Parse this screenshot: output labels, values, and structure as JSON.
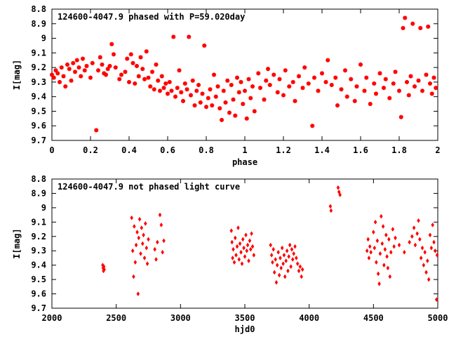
{
  "chart_data": [
    {
      "type": "scatter",
      "title": "124600-4047.9 phased with P=59.020day",
      "xlabel": "phase",
      "ylabel": "I[mag]",
      "xlim": [
        0,
        2
      ],
      "ylim": [
        8.8,
        9.7
      ],
      "y_inverted": true,
      "grid": false,
      "marker_color": "#ff0000",
      "marker": "asterisk",
      "xticks": [
        "0",
        "0.2",
        "0.4",
        "0.6",
        "0.8",
        "1",
        "1.2",
        "1.4",
        "1.6",
        "1.8",
        "2"
      ],
      "xtick_values": [
        0,
        0.2,
        0.4,
        0.6,
        0.8,
        1.0,
        1.2,
        1.4,
        1.6,
        1.8,
        2.0
      ],
      "yticks": [
        "8.8",
        "8.9",
        "9",
        "9.1",
        "9.2",
        "9.3",
        "9.4",
        "9.5",
        "9.6",
        "9.7"
      ],
      "ytick_values": [
        8.8,
        8.9,
        9.0,
        9.1,
        9.2,
        9.3,
        9.4,
        9.5,
        9.6,
        9.7
      ],
      "points": [
        [
          0.0,
          9.25
        ],
        [
          0.01,
          9.27
        ],
        [
          0.02,
          9.22
        ],
        [
          0.03,
          9.24
        ],
        [
          0.04,
          9.3
        ],
        [
          0.05,
          9.2
        ],
        [
          0.06,
          9.26
        ],
        [
          0.07,
          9.33
        ],
        [
          0.08,
          9.18
        ],
        [
          0.09,
          9.21
        ],
        [
          0.1,
          9.29
        ],
        [
          0.11,
          9.17
        ],
        [
          0.12,
          9.23
        ],
        [
          0.13,
          9.15
        ],
        [
          0.14,
          9.2
        ],
        [
          0.15,
          9.26
        ],
        [
          0.16,
          9.14
        ],
        [
          0.17,
          9.22
        ],
        [
          0.18,
          9.19
        ],
        [
          0.2,
          9.27
        ],
        [
          0.21,
          9.17
        ],
        [
          0.23,
          9.63
        ],
        [
          0.24,
          9.22
        ],
        [
          0.25,
          9.13
        ],
        [
          0.26,
          9.18
        ],
        [
          0.27,
          9.24
        ],
        [
          0.28,
          9.25
        ],
        [
          0.29,
          9.21
        ],
        [
          0.3,
          9.19
        ],
        [
          0.31,
          9.04
        ],
        [
          0.32,
          9.11
        ],
        [
          0.33,
          9.2
        ],
        [
          0.35,
          9.28
        ],
        [
          0.36,
          9.25
        ],
        [
          0.38,
          9.23
        ],
        [
          0.39,
          9.14
        ],
        [
          0.4,
          9.3
        ],
        [
          0.41,
          9.11
        ],
        [
          0.42,
          9.17
        ],
        [
          0.43,
          9.31
        ],
        [
          0.44,
          9.19
        ],
        [
          0.45,
          9.26
        ],
        [
          0.46,
          9.13
        ],
        [
          0.47,
          9.21
        ],
        [
          0.48,
          9.28
        ],
        [
          0.49,
          9.09
        ],
        [
          0.5,
          9.27
        ],
        [
          0.51,
          9.33
        ],
        [
          0.52,
          9.23
        ],
        [
          0.53,
          9.35
        ],
        [
          0.54,
          9.18
        ],
        [
          0.55,
          9.29
        ],
        [
          0.56,
          9.36
        ],
        [
          0.57,
          9.26
        ],
        [
          0.58,
          9.34
        ],
        [
          0.59,
          9.31
        ],
        [
          0.6,
          9.38
        ],
        [
          0.61,
          9.3
        ],
        [
          0.62,
          9.36
        ],
        [
          0.63,
          8.99
        ],
        [
          0.64,
          9.4
        ],
        [
          0.65,
          9.34
        ],
        [
          0.66,
          9.22
        ],
        [
          0.67,
          9.37
        ],
        [
          0.68,
          9.43
        ],
        [
          0.69,
          9.31
        ],
        [
          0.7,
          9.35
        ],
        [
          0.71,
          8.99
        ],
        [
          0.72,
          9.39
        ],
        [
          0.73,
          9.29
        ],
        [
          0.74,
          9.46
        ],
        [
          0.75,
          9.36
        ],
        [
          0.76,
          9.32
        ],
        [
          0.77,
          9.44
        ],
        [
          0.78,
          9.38
        ],
        [
          0.79,
          9.05
        ],
        [
          0.8,
          9.47
        ],
        [
          0.81,
          9.41
        ],
        [
          0.82,
          9.35
        ],
        [
          0.83,
          9.46
        ],
        [
          0.84,
          9.25
        ],
        [
          0.85,
          9.4
        ],
        [
          0.86,
          9.33
        ],
        [
          0.87,
          9.48
        ],
        [
          0.88,
          9.56
        ],
        [
          0.89,
          9.36
        ],
        [
          0.9,
          9.44
        ],
        [
          0.91,
          9.29
        ],
        [
          0.92,
          9.51
        ],
        [
          0.93,
          9.32
        ],
        [
          0.94,
          9.42
        ],
        [
          0.95,
          9.53
        ],
        [
          0.96,
          9.27
        ],
        [
          0.97,
          9.37
        ],
        [
          0.98,
          9.3
        ],
        [
          0.99,
          9.45
        ],
        [
          1.0,
          9.36
        ],
        [
          1.01,
          9.55
        ],
        [
          1.02,
          9.28
        ],
        [
          1.03,
          9.41
        ],
        [
          1.04,
          9.33
        ],
        [
          1.05,
          9.5
        ],
        [
          1.07,
          9.24
        ],
        [
          1.08,
          9.34
        ],
        [
          1.1,
          9.42
        ],
        [
          1.11,
          9.29
        ],
        [
          1.12,
          9.21
        ],
        [
          1.13,
          9.32
        ],
        [
          1.15,
          9.25
        ],
        [
          1.17,
          9.37
        ],
        [
          1.18,
          9.28
        ],
        [
          1.2,
          9.39
        ],
        [
          1.21,
          9.22
        ],
        [
          1.23,
          9.33
        ],
        [
          1.25,
          9.3
        ],
        [
          1.26,
          9.43
        ],
        [
          1.28,
          9.26
        ],
        [
          1.3,
          9.34
        ],
        [
          1.31,
          9.2
        ],
        [
          1.33,
          9.31
        ],
        [
          1.35,
          9.6
        ],
        [
          1.36,
          9.27
        ],
        [
          1.38,
          9.36
        ],
        [
          1.4,
          9.24
        ],
        [
          1.42,
          9.3
        ],
        [
          1.43,
          9.15
        ],
        [
          1.45,
          9.32
        ],
        [
          1.47,
          9.27
        ],
        [
          1.48,
          9.46
        ],
        [
          1.5,
          9.35
        ],
        [
          1.52,
          9.22
        ],
        [
          1.53,
          9.4
        ],
        [
          1.55,
          9.28
        ],
        [
          1.57,
          9.43
        ],
        [
          1.58,
          9.33
        ],
        [
          1.6,
          9.18
        ],
        [
          1.62,
          9.36
        ],
        [
          1.63,
          9.27
        ],
        [
          1.65,
          9.45
        ],
        [
          1.67,
          9.31
        ],
        [
          1.68,
          9.38
        ],
        [
          1.7,
          9.24
        ],
        [
          1.72,
          9.34
        ],
        [
          1.73,
          9.28
        ],
        [
          1.75,
          9.41
        ],
        [
          1.77,
          9.31
        ],
        [
          1.78,
          9.23
        ],
        [
          1.8,
          9.36
        ],
        [
          1.81,
          9.54
        ],
        [
          1.82,
          8.93
        ],
        [
          1.83,
          8.86
        ],
        [
          1.84,
          9.3
        ],
        [
          1.85,
          9.39
        ],
        [
          1.86,
          9.26
        ],
        [
          1.87,
          8.9
        ],
        [
          1.88,
          9.33
        ],
        [
          1.9,
          9.29
        ],
        [
          1.91,
          8.93
        ],
        [
          1.92,
          9.36
        ],
        [
          1.94,
          9.25
        ],
        [
          1.95,
          8.92
        ],
        [
          1.96,
          9.31
        ],
        [
          1.97,
          9.38
        ],
        [
          1.98,
          9.27
        ],
        [
          1.99,
          9.34
        ]
      ]
    },
    {
      "type": "scatter",
      "title": "124600-4047.9 not phased light curve",
      "xlabel": "hjd0",
      "ylabel": "I[mag]",
      "xlim": [
        2000,
        5000
      ],
      "ylim": [
        8.8,
        9.7
      ],
      "y_inverted": true,
      "grid": false,
      "marker_color": "#ff0000",
      "marker": "diamond",
      "xticks": [
        "2000",
        "2500",
        "3000",
        "3500",
        "4000",
        "4500",
        "5000"
      ],
      "xtick_values": [
        2000,
        2500,
        3000,
        3500,
        4000,
        4500,
        5000
      ],
      "yticks": [
        "8.8",
        "8.9",
        "9",
        "9.1",
        "9.2",
        "9.3",
        "9.4",
        "9.5",
        "9.6",
        "9.7"
      ],
      "ytick_values": [
        8.8,
        8.9,
        9.0,
        9.1,
        9.2,
        9.3,
        9.4,
        9.5,
        9.6,
        9.7
      ],
      "points": [
        [
          2395,
          9.4
        ],
        [
          2398,
          9.42
        ],
        [
          2401,
          9.44
        ],
        [
          2404,
          9.41
        ],
        [
          2407,
          9.43
        ],
        [
          2620,
          9.07
        ],
        [
          2628,
          9.3
        ],
        [
          2635,
          9.48
        ],
        [
          2640,
          9.13
        ],
        [
          2648,
          9.38
        ],
        [
          2655,
          9.26
        ],
        [
          2663,
          9.17
        ],
        [
          2670,
          9.6
        ],
        [
          2675,
          9.21
        ],
        [
          2682,
          9.08
        ],
        [
          2690,
          9.32
        ],
        [
          2697,
          9.14
        ],
        [
          2705,
          9.25
        ],
        [
          2712,
          9.19
        ],
        [
          2720,
          9.35
        ],
        [
          2727,
          9.11
        ],
        [
          2735,
          9.28
        ],
        [
          2742,
          9.39
        ],
        [
          2750,
          9.22
        ],
        [
          2800,
          9.29
        ],
        [
          2810,
          9.36
        ],
        [
          2820,
          9.24
        ],
        [
          2840,
          9.05
        ],
        [
          2850,
          9.12
        ],
        [
          2860,
          9.31
        ],
        [
          2870,
          9.23
        ],
        [
          3395,
          9.16
        ],
        [
          3400,
          9.24
        ],
        [
          3405,
          9.35
        ],
        [
          3410,
          9.29
        ],
        [
          3418,
          9.38
        ],
        [
          3425,
          9.21
        ],
        [
          3432,
          9.33
        ],
        [
          3440,
          9.27
        ],
        [
          3448,
          9.14
        ],
        [
          3455,
          9.36
        ],
        [
          3462,
          9.25
        ],
        [
          3470,
          9.31
        ],
        [
          3478,
          9.39
        ],
        [
          3485,
          9.22
        ],
        [
          3492,
          9.28
        ],
        [
          3500,
          9.34
        ],
        [
          3508,
          9.19
        ],
        [
          3515,
          9.3
        ],
        [
          3522,
          9.26
        ],
        [
          3530,
          9.37
        ],
        [
          3538,
          9.23
        ],
        [
          3545,
          9.29
        ],
        [
          3552,
          9.18
        ],
        [
          3560,
          9.27
        ],
        [
          3570,
          9.33
        ],
        [
          3700,
          9.26
        ],
        [
          3708,
          9.33
        ],
        [
          3715,
          9.38
        ],
        [
          3722,
          9.29
        ],
        [
          3730,
          9.45
        ],
        [
          3738,
          9.36
        ],
        [
          3745,
          9.52
        ],
        [
          3752,
          9.4
        ],
        [
          3760,
          9.31
        ],
        [
          3768,
          9.47
        ],
        [
          3775,
          9.35
        ],
        [
          3782,
          9.42
        ],
        [
          3790,
          9.28
        ],
        [
          3798,
          9.39
        ],
        [
          3805,
          9.33
        ],
        [
          3812,
          9.48
        ],
        [
          3820,
          9.37
        ],
        [
          3828,
          9.3
        ],
        [
          3835,
          9.44
        ],
        [
          3842,
          9.34
        ],
        [
          3850,
          9.26
        ],
        [
          3858,
          9.41
        ],
        [
          3865,
          9.29
        ],
        [
          3872,
          9.36
        ],
        [
          3880,
          9.32
        ],
        [
          3890,
          9.27
        ],
        [
          3900,
          9.35
        ],
        [
          3910,
          9.39
        ],
        [
          3920,
          9.44
        ],
        [
          3930,
          9.41
        ],
        [
          3940,
          9.48
        ],
        [
          3948,
          9.43
        ],
        [
          4165,
          8.99
        ],
        [
          4170,
          9.02
        ],
        [
          4225,
          8.86
        ],
        [
          4232,
          8.89
        ],
        [
          4240,
          8.91
        ],
        [
          4450,
          9.3
        ],
        [
          4458,
          9.22
        ],
        [
          4465,
          9.35
        ],
        [
          4472,
          9.27
        ],
        [
          4480,
          9.31
        ],
        [
          4500,
          9.17
        ],
        [
          4508,
          9.28
        ],
        [
          4515,
          9.1
        ],
        [
          4522,
          9.38
        ],
        [
          4530,
          9.23
        ],
        [
          4537,
          9.46
        ],
        [
          4545,
          9.53
        ],
        [
          4552,
          9.32
        ],
        [
          4560,
          9.06
        ],
        [
          4568,
          9.25
        ],
        [
          4575,
          9.13
        ],
        [
          4582,
          9.4
        ],
        [
          4590,
          9.29
        ],
        [
          4598,
          9.19
        ],
        [
          4605,
          9.34
        ],
        [
          4612,
          9.42
        ],
        [
          4620,
          9.22
        ],
        [
          4628,
          9.48
        ],
        [
          4636,
          9.31
        ],
        [
          4650,
          9.15
        ],
        [
          4660,
          9.27
        ],
        [
          4670,
          9.21
        ],
        [
          4700,
          9.26
        ],
        [
          4740,
          9.31
        ],
        [
          4780,
          9.24
        ],
        [
          4800,
          9.2
        ],
        [
          4815,
          9.14
        ],
        [
          4825,
          9.26
        ],
        [
          4840,
          9.18
        ],
        [
          4850,
          9.09
        ],
        [
          4860,
          9.22
        ],
        [
          4870,
          9.35
        ],
        [
          4880,
          9.28
        ],
        [
          4890,
          9.4
        ],
        [
          4900,
          9.31
        ],
        [
          4910,
          9.45
        ],
        [
          4920,
          9.37
        ],
        [
          4930,
          9.5
        ],
        [
          4940,
          9.19
        ],
        [
          4950,
          9.28
        ],
        [
          4960,
          9.12
        ],
        [
          4970,
          9.24
        ],
        [
          4980,
          9.3
        ],
        [
          4990,
          9.64
        ],
        [
          4995,
          9.33
        ]
      ]
    }
  ]
}
